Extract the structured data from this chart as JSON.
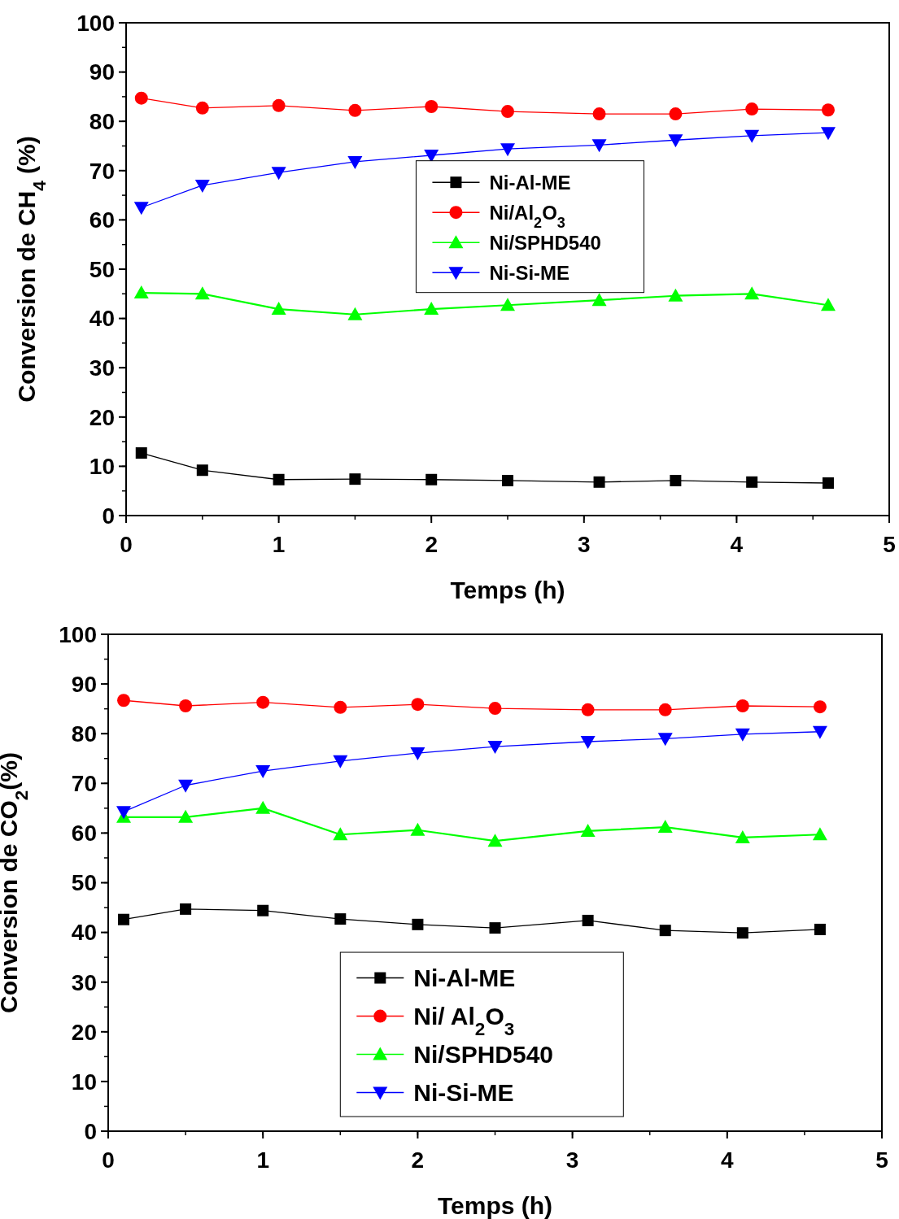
{
  "chart_data": [
    {
      "type": "line",
      "xlabel": "Temps (h)",
      "ylabel": "Conversion de CH$_{4}$ (%)",
      "xlim": [
        0,
        5
      ],
      "xticks": [
        0,
        1,
        2,
        3,
        4,
        5
      ],
      "ylim": [
        0,
        100
      ],
      "yticks": [
        0,
        10,
        20,
        30,
        40,
        50,
        60,
        70,
        80,
        90,
        100
      ],
      "legend": "top",
      "x": [
        0.1,
        0.5,
        1,
        1.5,
        2,
        2.5,
        3.1,
        3.6,
        4.1,
        4.6
      ],
      "series": [
        {
          "name": "Ni-Al-ME",
          "color": "#000000",
          "marker": "square",
          "values": [
            12.7,
            9.2,
            7.3,
            7.4,
            7.3,
            7.1,
            6.8,
            7.1,
            6.8,
            6.6
          ]
        },
        {
          "name": "Ni/Al$_{2}$O$_{3}$",
          "color": "#ff0000",
          "marker": "circle",
          "values": [
            84.7,
            82.7,
            83.2,
            82.2,
            83.0,
            82.0,
            81.5,
            81.5,
            82.5,
            82.3
          ]
        },
        {
          "name": "Ni/SPHD540",
          "color": "#00ff00",
          "marker": "triangle",
          "values": [
            45.2,
            45.0,
            41.9,
            40.8,
            41.9,
            42.7,
            43.7,
            44.6,
            45.0,
            42.7
          ]
        },
        {
          "name": "Ni-Si-ME",
          "color": "#0000ff",
          "marker": "triangle_down",
          "values": [
            62.5,
            67.0,
            69.6,
            71.8,
            73.1,
            74.4,
            75.2,
            76.2,
            77.1,
            77.7
          ]
        }
      ]
    },
    {
      "type": "line",
      "xlabel": "Temps (h)",
      "ylabel": "Conversion de CO$_{2}$(%)",
      "xlim": [
        0,
        5
      ],
      "xticks": [
        0,
        1,
        2,
        3,
        4,
        5
      ],
      "ylim": [
        0,
        100
      ],
      "yticks": [
        0,
        10,
        20,
        30,
        40,
        50,
        60,
        70,
        80,
        90,
        100
      ],
      "legend": "bottom",
      "x": [
        0.1,
        0.5,
        1,
        1.5,
        2,
        2.5,
        3.1,
        3.6,
        4.1,
        4.6
      ],
      "series": [
        {
          "name": "Ni-Al-ME",
          "color": "#000000",
          "marker": "square",
          "values": [
            42.6,
            44.7,
            44.4,
            42.7,
            41.6,
            40.9,
            42.4,
            40.4,
            39.9,
            40.6
          ]
        },
        {
          "name": "Ni/ Al$_{2}$O$_{3}$",
          "color": "#ff0000",
          "marker": "circle",
          "values": [
            86.7,
            85.6,
            86.3,
            85.3,
            85.9,
            85.1,
            84.8,
            84.8,
            85.6,
            85.4
          ]
        },
        {
          "name": "Ni/SPHD540",
          "color": "#00ff00",
          "marker": "triangle",
          "values": [
            63.2,
            63.2,
            65.0,
            59.7,
            60.6,
            58.4,
            60.4,
            61.2,
            59.1,
            59.7
          ]
        },
        {
          "name": "Ni-Si-ME",
          "color": "#0000ff",
          "marker": "triangle_down",
          "values": [
            64.3,
            69.6,
            72.5,
            74.5,
            76.1,
            77.4,
            78.4,
            79.0,
            79.9,
            80.4
          ]
        }
      ]
    }
  ]
}
